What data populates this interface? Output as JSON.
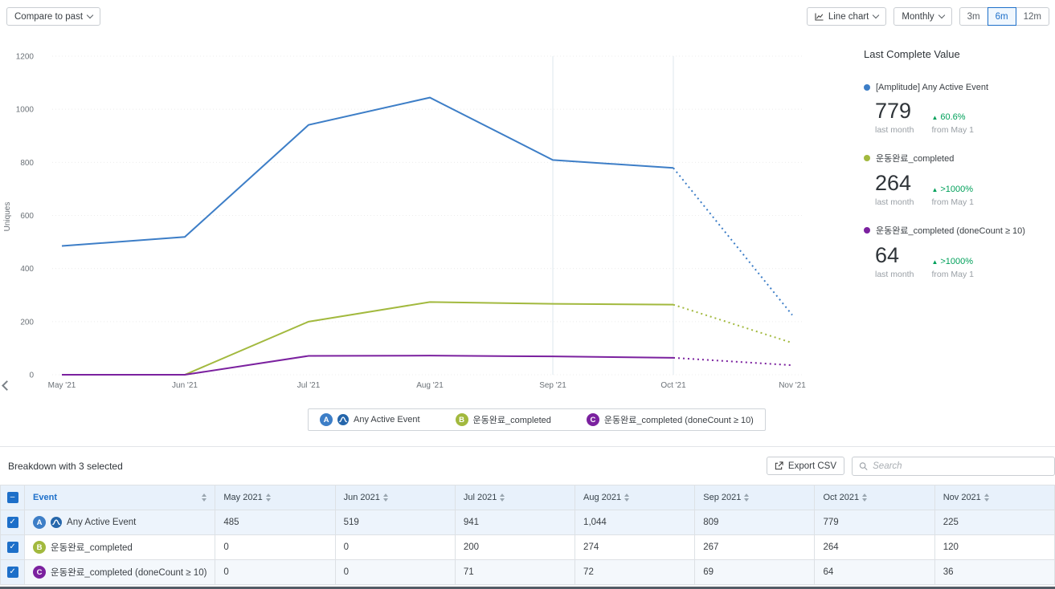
{
  "toolbar": {
    "compare_label": "Compare to past",
    "chart_type_label": "Line chart",
    "granularity_label": "Monthly",
    "ranges": [
      "3m",
      "6m",
      "12m"
    ],
    "selected_range": "6m"
  },
  "chart_data": {
    "type": "line",
    "title": "",
    "ylabel": "Uniques",
    "ylim": [
      0,
      1200
    ],
    "yticks": [
      0,
      200,
      400,
      600,
      800,
      1000,
      1200
    ],
    "x": [
      "May '21",
      "Jun '21",
      "Jul '21",
      "Aug '21",
      "Sep '21",
      "Oct '21",
      "Nov '21"
    ],
    "solid_until_index": 5,
    "guide_x_indices": [
      4,
      5
    ],
    "grid": true,
    "legend_position": "bottom",
    "series": [
      {
        "name": "Any Active Event",
        "letter": "A",
        "color": "#3d7ec7",
        "values": [
          485,
          519,
          941,
          1044,
          809,
          779,
          225
        ]
      },
      {
        "name": "운동완료_completed",
        "letter": "B",
        "color": "#a2b93e",
        "values": [
          0,
          0,
          200,
          274,
          267,
          264,
          120
        ]
      },
      {
        "name": "운동완료_completed (doneCount ≥ 10)",
        "letter": "C",
        "color": "#7b219f",
        "values": [
          0,
          0,
          71,
          72,
          69,
          64,
          36
        ]
      }
    ]
  },
  "legend": {
    "items": [
      {
        "letter": "A",
        "label": "Any Active Event",
        "color": "#3d7ec7",
        "amplitude_icon": true
      },
      {
        "letter": "B",
        "label": "운동완료_completed",
        "color": "#a2b93e",
        "amplitude_icon": false
      },
      {
        "letter": "C",
        "label": "운동완료_completed (doneCount ≥ 10)",
        "color": "#7b219f",
        "amplitude_icon": false
      }
    ]
  },
  "last_complete": {
    "title": "Last Complete Value",
    "items": [
      {
        "name": "[Amplitude] Any Active Event",
        "value": "779",
        "period": "last month",
        "change": "60.6%",
        "change_direction": "up",
        "from": "from May 1",
        "color": "#3d7ec7"
      },
      {
        "name": "운동완료_completed",
        "value": "264",
        "period": "last month",
        "change": ">1000%",
        "change_direction": "up",
        "from": "from May 1",
        "color": "#a2b93e"
      },
      {
        "name": "운동완료_completed (doneCount ≥ 10)",
        "value": "64",
        "period": "last month",
        "change": ">1000%",
        "change_direction": "up",
        "from": "from May 1",
        "color": "#7b219f"
      }
    ]
  },
  "breakdown": {
    "title": "Breakdown with 3 selected",
    "export_label": "Export CSV",
    "search_placeholder": "Search",
    "columns": [
      "Event",
      "May 2021",
      "Jun 2021",
      "Jul 2021",
      "Aug 2021",
      "Sep 2021",
      "Oct 2021",
      "Nov 2021"
    ],
    "rows": [
      {
        "letter": "A",
        "color": "#3d7ec7",
        "event": "Any Active Event",
        "amplitude_icon": true,
        "selected": true,
        "values": [
          "485",
          "519",
          "941",
          "1,044",
          "809",
          "779",
          "225"
        ]
      },
      {
        "letter": "B",
        "color": "#a2b93e",
        "event": "운동완료_completed",
        "amplitude_icon": false,
        "selected": true,
        "values": [
          "0",
          "0",
          "200",
          "274",
          "267",
          "264",
          "120"
        ]
      },
      {
        "letter": "C",
        "color": "#7b219f",
        "event": "운동완료_completed (doneCount ≥ 10)",
        "amplitude_icon": false,
        "selected": true,
        "values": [
          "0",
          "0",
          "71",
          "72",
          "69",
          "64",
          "36"
        ]
      }
    ]
  },
  "colors": {
    "accent_blue": "#1d6fc9",
    "positive_green": "#00a05a"
  }
}
